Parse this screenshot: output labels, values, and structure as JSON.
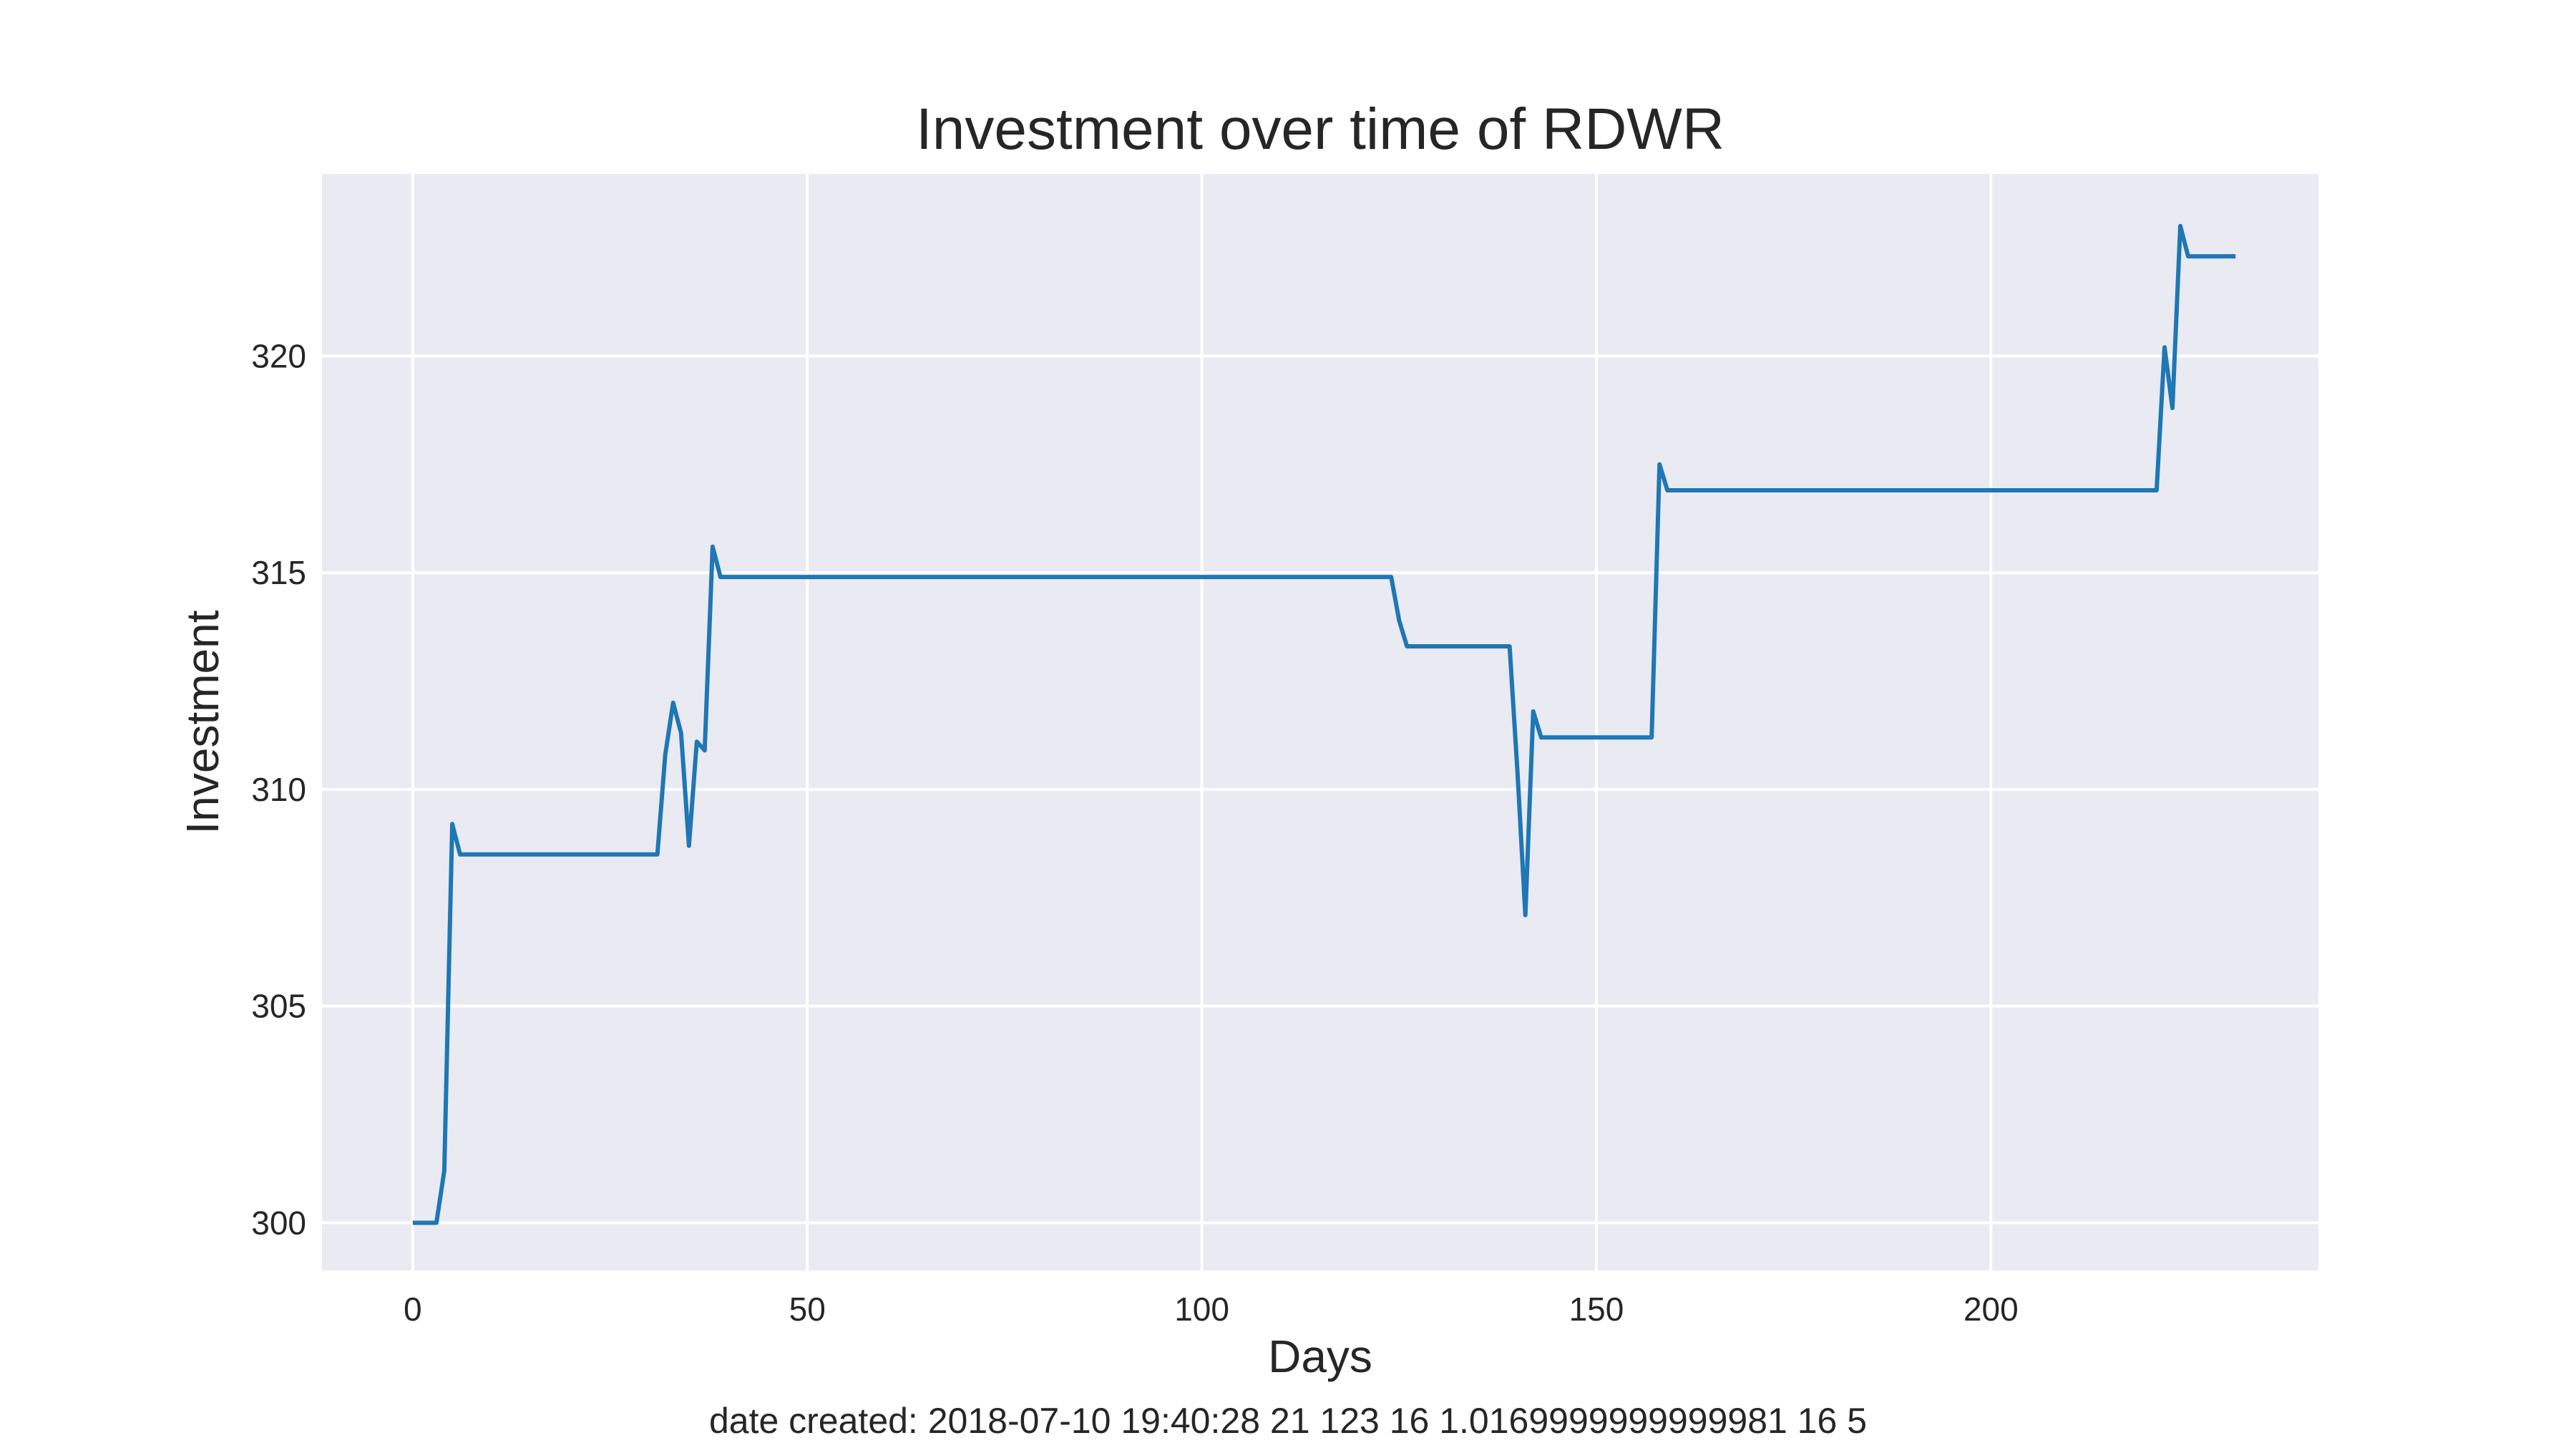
{
  "chart_data": {
    "type": "line",
    "title": "Investment over time of RDWR",
    "xlabel": "Days",
    "ylabel": "Investment",
    "xlim": [
      -11.5,
      241.5
    ],
    "ylim": [
      298.9,
      324.2
    ],
    "xticks": [
      0,
      50,
      100,
      150,
      200
    ],
    "yticks": [
      300,
      305,
      310,
      315,
      320
    ],
    "grid": true,
    "legend": "none",
    "series": [
      {
        "color": "#1f77b4",
        "x": [
          0,
          3,
          4,
          5,
          6,
          31,
          32,
          33,
          34,
          35,
          36,
          37,
          38,
          39,
          124,
          125,
          126,
          139,
          140,
          141,
          142,
          143,
          157,
          158,
          159,
          221,
          222,
          223,
          224,
          225,
          231
        ],
        "y": [
          300.0,
          300.0,
          301.2,
          309.2,
          308.5,
          308.5,
          310.8,
          312.0,
          311.3,
          308.7,
          311.1,
          310.9,
          315.6,
          314.9,
          314.9,
          313.9,
          313.3,
          313.3,
          310.4,
          307.1,
          311.8,
          311.2,
          311.2,
          317.5,
          316.9,
          316.9,
          320.2,
          318.8,
          323.0,
          322.3,
          322.3
        ]
      }
    ]
  },
  "footer": {
    "text": "date created: 2018-07-10 19:40:28 21 123 16 1.0169999999999981 16 5"
  }
}
